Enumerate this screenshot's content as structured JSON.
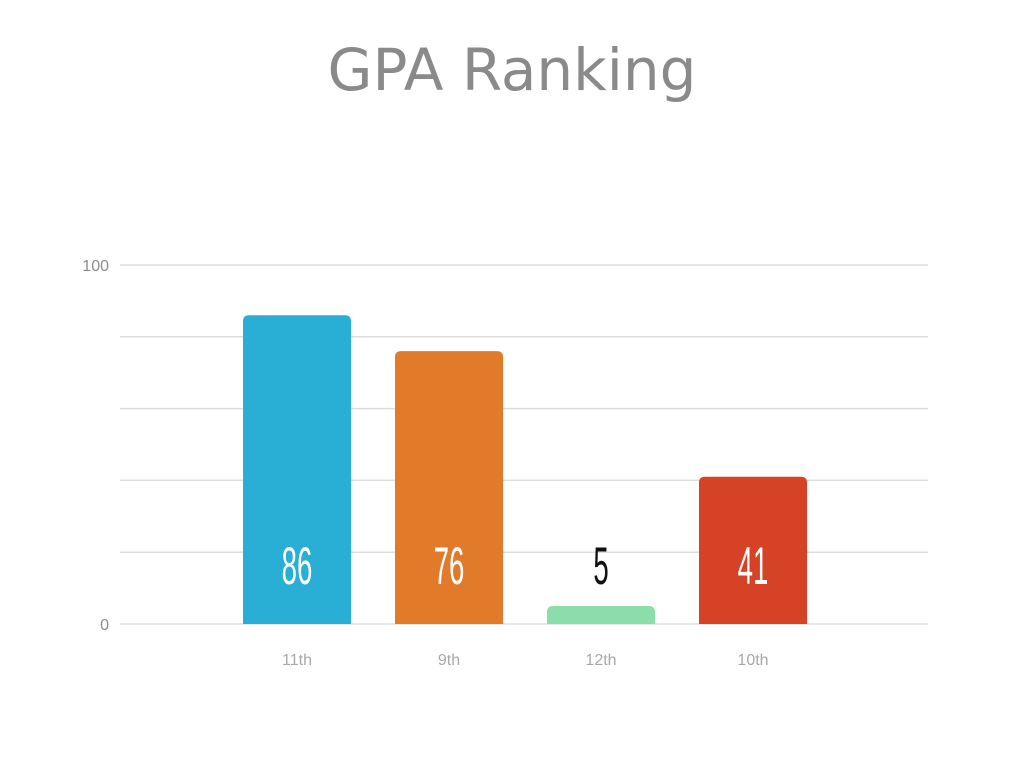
{
  "chart_data": {
    "type": "bar",
    "title": "GPA Ranking",
    "xlabel": "",
    "ylabel": "",
    "categories": [
      "11th",
      "9th",
      "12th",
      "10th"
    ],
    "values": [
      86,
      76,
      5,
      41
    ],
    "colors": [
      "#29afd6",
      "#e17b2a",
      "#8dddab",
      "#d54225"
    ],
    "label_colors": [
      "#ffffff",
      "#ffffff",
      "#111111",
      "#ffffff"
    ],
    "ylim": [
      0,
      100
    ],
    "y_ticks_labeled": [
      0,
      100
    ],
    "grid": true,
    "legend": "none"
  }
}
